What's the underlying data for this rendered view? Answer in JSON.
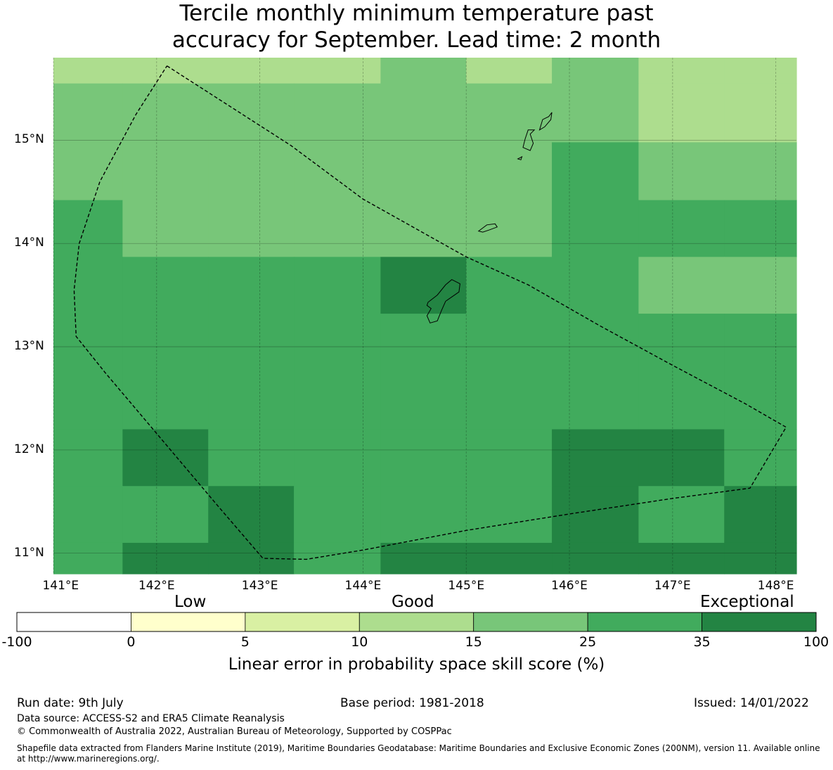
{
  "title": {
    "line1": "Tercile monthly minimum temperature past",
    "line2": "accuracy for September. Lead time: 2 month"
  },
  "map": {
    "lon_range": [
      141.0,
      148.2
    ],
    "lat_range": [
      10.8,
      15.8
    ],
    "lon_ticks": [
      141,
      142,
      143,
      144,
      145,
      146,
      147,
      148
    ],
    "lon_tick_labels": [
      "141°E",
      "142°E",
      "143°E",
      "144°E",
      "145°E",
      "146°E",
      "147°E",
      "148°E"
    ],
    "lat_ticks": [
      11,
      12,
      13,
      14,
      15
    ],
    "lat_tick_labels": [
      "11°N",
      "12°N",
      "13°N",
      "14°N",
      "15°N"
    ],
    "grid_columns_lon": [
      141.0,
      141.67,
      142.5,
      143.33,
      144.17,
      145.0,
      145.83,
      146.67,
      147.5,
      148.2
    ],
    "grid_rows_lat": [
      15.8,
      15.55,
      14.98,
      14.42,
      13.87,
      13.32,
      12.2,
      11.65,
      11.1,
      10.8
    ],
    "skill_cells": [
      [
        12,
        12,
        12,
        12,
        20,
        12,
        20,
        12,
        12
      ],
      [
        20,
        20,
        20,
        20,
        20,
        20,
        20,
        12,
        12
      ],
      [
        20,
        20,
        20,
        20,
        20,
        20,
        30,
        20,
        20
      ],
      [
        30,
        20,
        20,
        20,
        20,
        20,
        30,
        30,
        30
      ],
      [
        30,
        30,
        30,
        30,
        40,
        30,
        30,
        20,
        20
      ],
      [
        30,
        30,
        30,
        30,
        30,
        30,
        30,
        30,
        30
      ],
      [
        30,
        40,
        30,
        30,
        30,
        30,
        40,
        40,
        30
      ],
      [
        30,
        30,
        40,
        30,
        30,
        30,
        40,
        30,
        40
      ],
      [
        30,
        40,
        40,
        30,
        40,
        40,
        40,
        40,
        40
      ]
    ],
    "eez_boundary": [
      [
        142.1,
        15.72
      ],
      [
        143.3,
        14.95
      ],
      [
        144.0,
        14.43
      ],
      [
        145.0,
        13.87
      ],
      [
        145.6,
        13.6
      ],
      [
        146.3,
        13.2
      ],
      [
        147.0,
        12.82
      ],
      [
        147.7,
        12.45
      ],
      [
        148.1,
        12.22
      ],
      [
        147.75,
        11.63
      ],
      [
        147.0,
        11.53
      ],
      [
        146.0,
        11.38
      ],
      [
        145.0,
        11.22
      ],
      [
        144.0,
        11.03
      ],
      [
        143.45,
        10.94
      ],
      [
        143.03,
        10.95
      ],
      [
        142.6,
        11.45
      ],
      [
        142.0,
        12.16
      ],
      [
        141.5,
        12.75
      ],
      [
        141.22,
        13.1
      ],
      [
        141.2,
        13.55
      ],
      [
        141.25,
        14.0
      ],
      [
        141.45,
        14.6
      ],
      [
        141.8,
        15.25
      ],
      [
        142.1,
        15.72
      ]
    ],
    "islands": [
      [
        [
          144.63,
          13.43
        ],
        [
          144.72,
          13.5
        ],
        [
          144.8,
          13.6
        ],
        [
          144.86,
          13.65
        ],
        [
          144.94,
          13.61
        ],
        [
          144.93,
          13.53
        ],
        [
          144.8,
          13.44
        ],
        [
          144.76,
          13.35
        ],
        [
          144.72,
          13.25
        ],
        [
          144.65,
          13.23
        ],
        [
          144.62,
          13.3
        ],
        [
          144.66,
          13.37
        ],
        [
          144.62,
          13.4
        ]
      ],
      [
        [
          145.12,
          14.12
        ],
        [
          145.2,
          14.18
        ],
        [
          145.28,
          14.19
        ],
        [
          145.3,
          14.16
        ],
        [
          145.22,
          14.13
        ],
        [
          145.16,
          14.11
        ]
      ],
      [
        [
          145.55,
          14.93
        ],
        [
          145.62,
          14.9
        ],
        [
          145.65,
          14.97
        ],
        [
          145.62,
          15.06
        ],
        [
          145.66,
          15.1
        ],
        [
          145.6,
          15.1
        ],
        [
          145.57,
          15.01
        ]
      ],
      [
        [
          145.71,
          15.1
        ],
        [
          145.74,
          15.2
        ],
        [
          145.8,
          15.23
        ],
        [
          145.83,
          15.27
        ],
        [
          145.82,
          15.2
        ],
        [
          145.76,
          15.13
        ]
      ],
      [
        [
          145.5,
          14.82
        ],
        [
          145.54,
          14.84
        ],
        [
          145.53,
          14.81
        ]
      ]
    ]
  },
  "colorbar": {
    "category_labels": [
      "Low",
      "Good",
      "Exceptional"
    ],
    "bounds": [
      -100,
      0,
      5,
      10,
      15,
      25,
      35,
      100
    ],
    "tick_labels": [
      "-100",
      "0",
      "5",
      "10",
      "15",
      "25",
      "35",
      "100"
    ],
    "colors": [
      "#ffffff",
      "#ffffcc",
      "#d9f0a3",
      "#addd8e",
      "#78c679",
      "#41ab5d",
      "#238443"
    ],
    "title": "Linear error in probability space skill score (%)"
  },
  "footer": {
    "run_date": "Run date: 9th July",
    "base_period": "Base period: 1981-2018",
    "issued": "Issued: 14/01/2022",
    "data_source": "Data source: ACCESS-S2 and ERA5 Climate Reanalysis",
    "copyright": "© Commonwealth of Australia 2022, Australian Bureau of Meteorology, Supported by COSPPac",
    "shapefile_line1": "Shapefile data extracted from Flanders Marine Institute (2019), Maritime Boundaries Geodatabase: Maritime Boundaries and Exclusive Economic Zones (200NM), version 11. Available online",
    "shapefile_line2": "at http://www.marineregions.org/."
  }
}
